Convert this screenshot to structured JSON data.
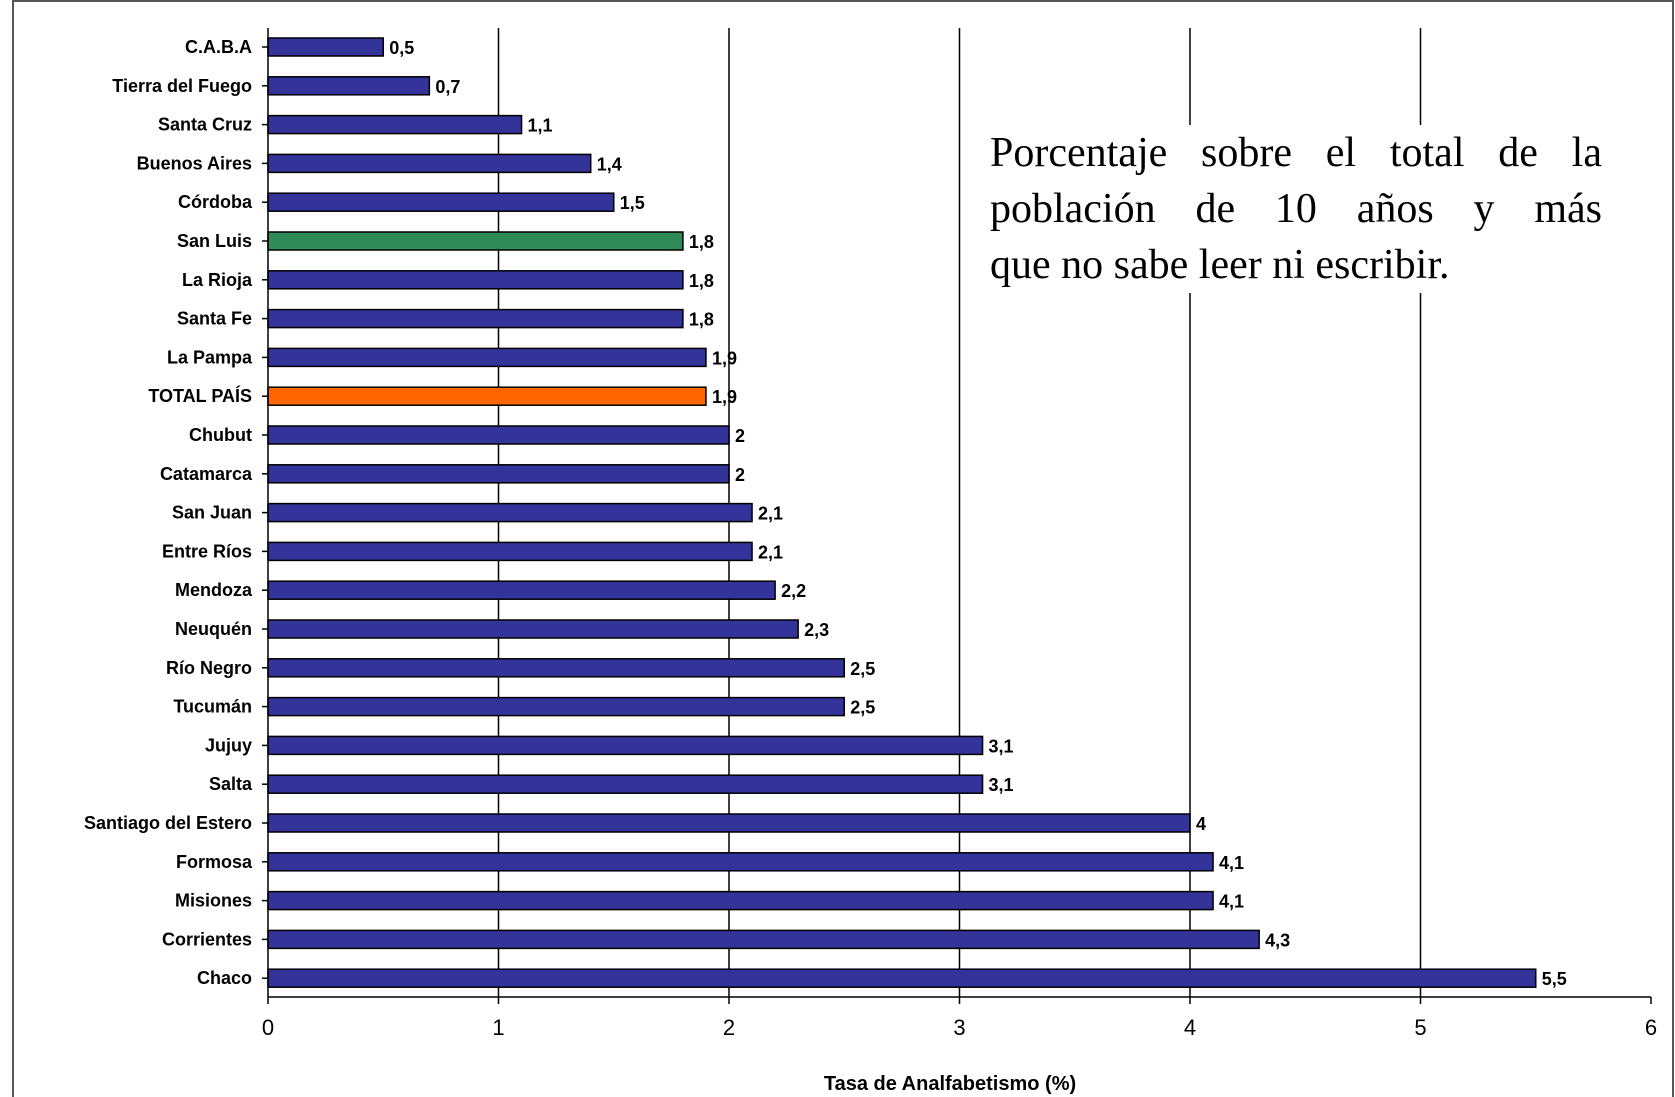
{
  "chart_data": {
    "type": "bar",
    "orientation": "horizontal",
    "categories": [
      "C.A.B.A",
      "Tierra del Fuego",
      "Santa Cruz",
      "Buenos Aires",
      "Córdoba",
      "San Luis",
      "La Rioja",
      "Santa Fe",
      "La Pampa",
      "TOTAL PAÍS",
      "Chubut",
      "Catamarca",
      "San Juan",
      "Entre Ríos",
      "Mendoza",
      "Neuquén",
      "Río Negro",
      "Tucumán",
      "Jujuy",
      "Salta",
      "Santiago del Estero",
      "Formosa",
      "Misiones",
      "Corrientes",
      "Chaco"
    ],
    "values": [
      0.5,
      0.7,
      1.1,
      1.4,
      1.5,
      1.8,
      1.8,
      1.8,
      1.9,
      1.9,
      2,
      2,
      2.1,
      2.1,
      2.2,
      2.3,
      2.5,
      2.5,
      3.1,
      3.1,
      4,
      4.1,
      4.1,
      4.3,
      5.5
    ],
    "value_labels": [
      "0,5",
      "0,7",
      "1,1",
      "1,4",
      "1,5",
      "1,8",
      "1,8",
      "1,8",
      "1,9",
      "1,9",
      "2",
      "2",
      "2,1",
      "2,1",
      "2,2",
      "2,3",
      "2,5",
      "2,5",
      "3,1",
      "3,1",
      "4",
      "4,1",
      "4,1",
      "4,3",
      "5,5"
    ],
    "colors": [
      "#333399",
      "#333399",
      "#333399",
      "#333399",
      "#333399",
      "#2e8b57",
      "#333399",
      "#333399",
      "#333399",
      "#ff6600",
      "#333399",
      "#333399",
      "#333399",
      "#333399",
      "#333399",
      "#333399",
      "#333399",
      "#333399",
      "#333399",
      "#333399",
      "#333399",
      "#333399",
      "#333399",
      "#333399",
      "#333399"
    ],
    "xlabel": "Tasa de Analfabetismo (%)",
    "xlim": [
      0,
      6
    ],
    "xticks": [
      "0",
      "1",
      "2",
      "3",
      "4",
      "5",
      "6"
    ],
    "grid": true,
    "legend": "none"
  },
  "annotation": {
    "line1": "Porcentaje sobre el total de la",
    "line2": "población de 10 años y más",
    "line3": "que no sabe leer ni escribir."
  }
}
